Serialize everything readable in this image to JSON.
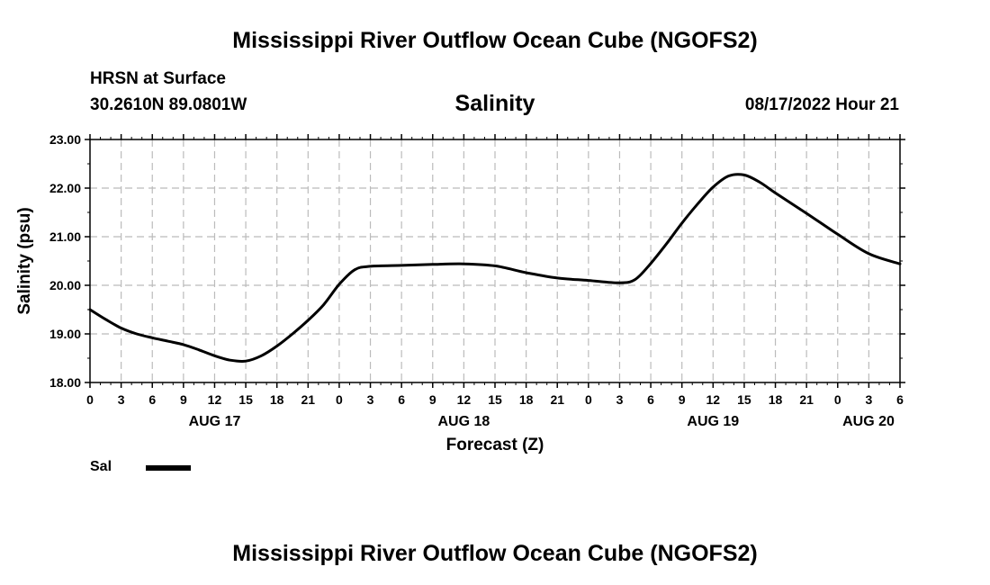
{
  "header": {
    "title": "Mississippi River Outflow Ocean Cube (NGOFS2)",
    "station": "HRSN at Surface",
    "coords": "30.2610N  89.0801W",
    "subtitle": "Salinity",
    "datetime": "08/17/2022 Hour 21"
  },
  "footer": {
    "title": "Mississippi River Outflow Ocean Cube (NGOFS2)"
  },
  "legend": {
    "label": "Sal"
  },
  "colors": {
    "line": "#000000",
    "grid": "#bbbbbb"
  },
  "chart_data": {
    "type": "line",
    "title": "Salinity",
    "xlabel": "Forecast (Z)",
    "ylabel": "Salinity (psu)",
    "xlim": [
      0,
      78
    ],
    "ylim": [
      18,
      23
    ],
    "yticks": [
      "18.00",
      "19.00",
      "20.00",
      "21.00",
      "22.00",
      "23.00"
    ],
    "xtick_hours": [
      0,
      3,
      6,
      9,
      12,
      15,
      18,
      21,
      24,
      27,
      30,
      33,
      36,
      39,
      42,
      45,
      48,
      51,
      54,
      57,
      60,
      63,
      66,
      69,
      72,
      75,
      78
    ],
    "xtick_labels": [
      "0",
      "3",
      "6",
      "9",
      "12",
      "15",
      "18",
      "21",
      "0",
      "3",
      "6",
      "9",
      "12",
      "15",
      "18",
      "21",
      "0",
      "3",
      "6",
      "9",
      "12",
      "15",
      "18",
      "21",
      "0",
      "3",
      "6"
    ],
    "day_labels": [
      {
        "hour": 12,
        "label": "AUG 17"
      },
      {
        "hour": 36,
        "label": "AUG 18"
      },
      {
        "hour": 60,
        "label": "AUG 19"
      },
      {
        "hour": 78,
        "label": "AUG 20"
      }
    ],
    "grid": true,
    "legend_position": "bottom-left",
    "series": [
      {
        "name": "Sal",
        "x": [
          0,
          1.5,
          3,
          4.5,
          6,
          7.5,
          9,
          10.5,
          12,
          13.5,
          15,
          16.5,
          18,
          19.5,
          21,
          22.5,
          24,
          25.5,
          27,
          30,
          33,
          36,
          39,
          42,
          45,
          48,
          51,
          52.5,
          54,
          55.5,
          57,
          58.5,
          60,
          61.5,
          63,
          64.5,
          66,
          69,
          72,
          75,
          78
        ],
        "values": [
          19.5,
          19.3,
          19.12,
          19.0,
          18.92,
          18.85,
          18.78,
          18.67,
          18.55,
          18.46,
          18.44,
          18.55,
          18.75,
          19.0,
          19.28,
          19.6,
          20.02,
          20.32,
          20.39,
          20.41,
          20.43,
          20.44,
          20.4,
          20.26,
          20.15,
          20.1,
          20.05,
          20.12,
          20.45,
          20.85,
          21.28,
          21.67,
          22.02,
          22.25,
          22.27,
          22.12,
          21.9,
          21.48,
          21.05,
          20.65,
          20.44
        ]
      }
    ]
  }
}
